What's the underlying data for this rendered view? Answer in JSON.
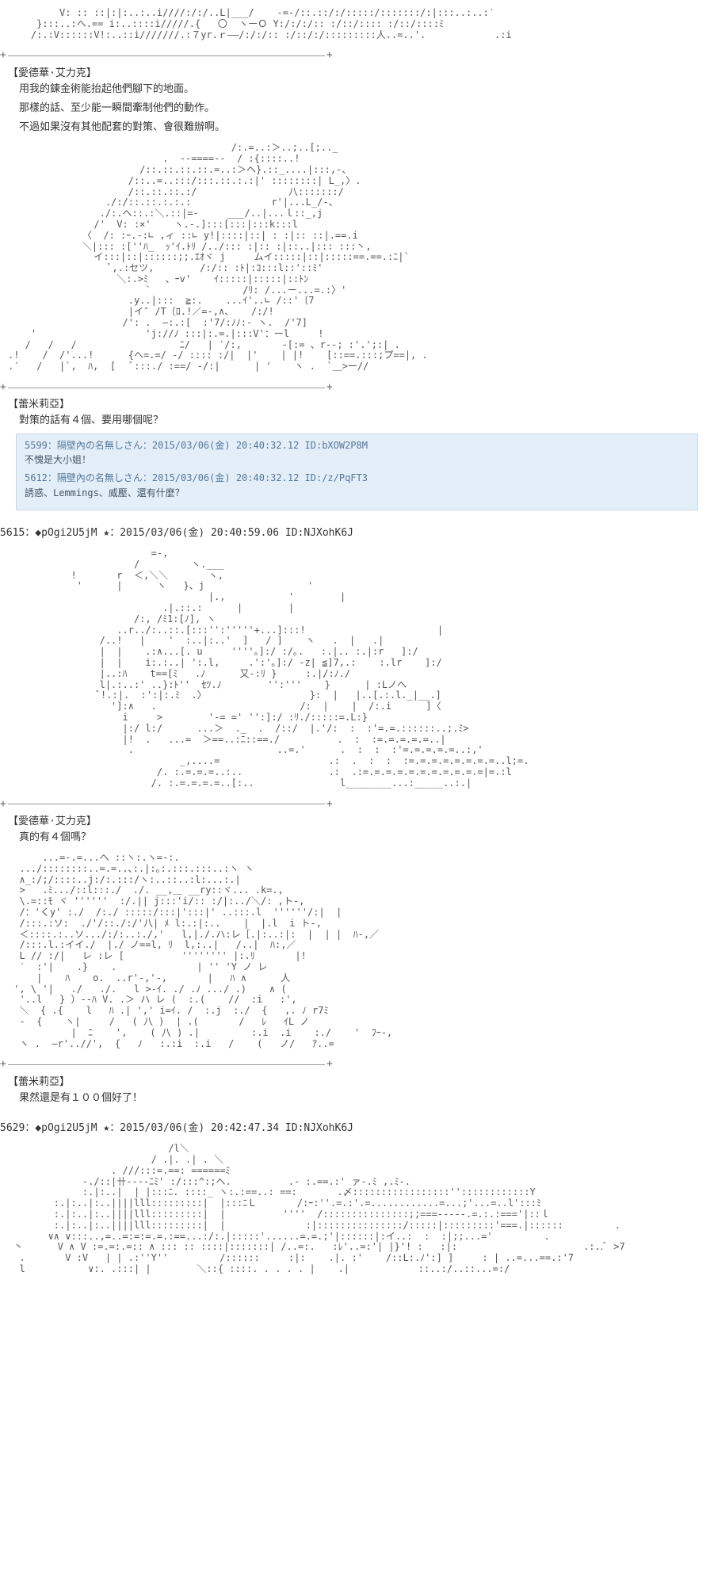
{
  "colors": {
    "bg": "#ffffff",
    "text": "#333333",
    "aa_text": "#555555",
    "quote_bg": "#e4eef8",
    "quote_border": "#c8d8e8",
    "quote_text": "#3a5a7a",
    "quote_header": "#557799",
    "divider": "#999999"
  },
  "blocks": [
    {
      "speaker": "【愛德華·艾力克】",
      "lines": [
        "用我的鍊金術能抬起他們腳下的地面。",
        "那樣的話、至少能一瞬間牽制他們的動作。",
        "不過如果沒有其他配套的對策、會很難辦啊。"
      ]
    },
    {
      "speaker": "【蕾米莉亞】",
      "lines": [
        "對策的話有４個、要用哪個呢？"
      ]
    },
    {
      "speaker": "【愛德華·艾力克】",
      "lines": [
        "真的有４個嗎？"
      ]
    },
    {
      "speaker": "【蕾米莉亞】",
      "lines": [
        "果然還是有１００個好了！"
      ]
    }
  ],
  "quotes": [
    {
      "header": "5599：隔壁內の名無しさん：2015/03/06(金) 20:40:32.12 ID:bXOW2P8M",
      "body": "不愧是大小姐！"
    },
    {
      "header": "5612：隔壁內の名無しさん：2015/03/06(金) 20:40:32.12 ID:/z/PqFT3",
      "body": "誘惑、Lemmings、威壓、還有什麼？"
    }
  ],
  "posts": [
    {
      "header": "5615：◆pOgi2U5jM ★：2015/03/06(金) 20:40:59.06 ID:NJXohK6J"
    },
    {
      "header": "5629：◆pOgi2U5jM ★：2015/03/06(金) 20:42:47.34 ID:NJXohK6J"
    }
  ],
  "aa": {
    "a0": "         V: :: ::|:|:..:..i////:/:/..L|___/    -=-/::.::/:/:::::/:::::::/:|:::..:..:′\n     }:::..:ヘ.== i:..::::i/////.{   〇  ヽーＯ Y:/:/:/:: :/::/:::: :/::/::::ﾐ\n    /:.:V::::::V!:..::i///////.:７yr.ｒ――/:/:/:: :/::/:/:::::::::人..=..'.            .:i",
    "a1": "                                       /:.=..:＞..;..[;.._\n                           .  -‐====‐-  / :{::::..!\n                       /::.::.::.::.=..:＞ヘ}.::_....|:::,-、\n                     /::..=..:::/:::.::.:.:|' ::::::::| L_,〉.\n                     /::.::.::.:/                八:::::::/\n                 ./:/::.::.:.:.:              r'|...L_/-、\n                ./:.ヘ::.:＼.::|=-     ___/..|...ｌ::_,j\n               /'  V: :×'    ヽ.-.]:::[:::|:::k:::l\n             〈  /: :ｰ.-:∟ ,ィ ::∟ y!|::::|::| : :|:: ::|.==.i\n             ＼|::: :[''ﾊ_  ｯ'ｲ.ﾄﾘ /../::: :|:: :|::..|::: :::丶,\n               イ:::|::|::::::;;.ｴｵヾ j     ムイ:::::|::|:::::==.==.:ﾆ|`\n                  ﾞ,.:セツ,        /:/:: :ﾄ|:ｺ:::l::'::ﾐ'\n                   ＼:.>ﾐ   、ｰv'    ｲ:::::|:::::|::ﾄﾝ\n                        `                /ﾘ: /...ー...=.:〉'\n                     .y..|:::  ≧:.    ...ｲ'..∟ /::'〔7\n                     |イ″ /T〔ﾛ.!／=-,∧、   /:/!\n                    /': .  ―:.:[  :'7/:ﾉﾉ:- ヽ.  /'7]\n    '                   'j://ﾉ :::|:.=.|:::V'：ーl     !\n   /   /   /                  ﾆ/   | ′/:,       -[:= 、r--; :'.';:| .\n.!    /  /'...!      {ヘ=.=/ -/ :::: :/|  |'    | |!    [::==.:::;プ==|, .\n.′   /   |`,  ﾊ,  [   ﾞ:::./ :==/ -/:|      | '    ヽ .  `＿>ー//",
    "a2": "                         =-,\n                      /         ヽ.___\n           !       r  ＜,＼＼       ヽ,\n            '      |      ヽ   }、j                  '\n                                   |.,           '        |\n                           .|.::.:      |        |\n                      /:, /ﾐ1:[ﾉ], ヽ\n                   ..r../:..::.[:::'':'''''+...]:::!                       |\n                /..!   |    '  :..|:..'  ]   / ]    ヽ   .  |   .|\n                |  |    .:∧...[. u     ''''｡]:/ :/｡.   :.|.. :.|:r   ]:/\n                |  |    i:.:..| ':.l,     .':'｡]:/ -z| ≦]7,.:    :.lr    ]:/\n                |..:ﾊ    t==[ﾐ   .ﾉ      又-:ﾘ }     :.|/:ﾉ./\n                l|.:..:' ..}:ﾄ''  ｾﾂ.ﾉ        '':'''    }      | :Lノヘ\n                ﾞ!.:|.  :':|:.ﾐ  .〉                  }:  |   |..[.:.l._|__.]\n                  ']:∧   .                         /:  |    |  /:.i      ]〈\n                    i     >        '-= =' '':]:/ :ﾘ./:::::=.L:}\n                    |:/ l:/      ...＞  ._  .  /::/  |.'/:  :  :'=.=.::::::..;.ﾐ>\n                    |!  .   ...=  ＞==..:ﾆ::==./          .  :  :=.=.=.=.=..|\n                     .                         ..=.'      .  :  :  :'=.=.=.=.=..:,'\n                              _,....=                   .:  .  :  :  :=.=.=.=.=.=.=.=..l;=.\n                          /. :.=.=.=..:..               .:  .:=.=.=.=.=.=.=.=.=.=.=|=.:l\n                         /. :.=.=.=.=..[:..               l________...:_____..:.|",
    "a3": "      ...=-.=...ヘ ::ヽ:.ヽ=-:.\n  .../::::::::..=.=..､:.|:｡:.:::.:::..:ヽ ヽ\n  ∧_:/;/::::..j:/:.:::/ヽ:..::..:l:...:.|\n  >   .ﾐ.../::l:::./  ./. __,＿ __ry::ヾ... .k=.,\n  \\.=::ﾓ ヾ ''''''  :/.|| j:::'i/:: :/|:../＼/: ,ト‐,\n  /：'くy' :./  /:./ :::::/:::|':::|' ..:::.l  ''''''/:|  |\n  /:::.:ソ:  ./'/::./:/'八| ﾒ l:.:|:..    |  |.l  i ト‐,\n  ＜::::.:..ソ.../:/:..:./,'   l,|./.ハ:レ［.|:..:|:  |  | |  ﾊ-,／\n  /:::.l.:イイ./  |./ ノ==l, ﾘ  l,:..|   /..|  ﾊ:,／\n  L // :/|   レ :レ [          '''''''' |:.ﾘ       |!\n  ′  :'|    .}    .              | '' 'Y ノ レ\n     |    ﾊ    o.  ..r'-,'‐,       |   ﾊ ∧      人\n ', \\ '|   ./   ./.   l >-ｲ. ./ .ﾉ .../ .)    ∧ (\n  '..l   } ）‐-ﾊ V. .＞ ハ レ (  :.(    //  :i   :',\n  ＼  { .{    l   ﾊ .| ',' i=ｲ. /  :.j  :./  {   ,. ﾉ r7ﾐ\n  ‐  {    ヽ|     /   ( 八 )  | .(       /   ﾚ   ｲL ノ\n           |  ﾆ    ',    ( 八 ) .|         :.i  .i    :./    '  ﾌｰ-,\n  ヽ .  ―r'..//',  {   ﾉ   :.:i  :.i   /    (   ノ/   ｱ..=",
    "a4": "                            /l＼\n                         / .|. .| . ＼\n                  . ///:::=.==: ======ﾐ\n             ‐./::|卄‐‐‐‐ﾆﾐ' :/:::^:;ヘ.          .- :.==.:' ァ-.ﾐ ,.ﾐ-.\n             :.|:..|  | |:::ﾆ. ::::_ ヽ:.:==..: ==:       .〆:::::::::::::::::''::::::::::::Y\n        :.|:..|:..||||lll:::::::::|  |:::ﾆＬ       /:ｰ:''.=.:'.=............=...;'...=..l':::ﾐ\n        :.|:..|:..||||lll:::::::::|  |          ''''  /:::::::::::::::;;===-----.=.:.:==='|::ｌ\n        :.|:..|:..||||lll:::::::::|  |              :|:::::::::::::::/:::::|:::::::::'===.|::::::         .\n       ∨∧ ∨:::..,=..=:=:=.=.:==...:/:.|:::::'......=.=.;'|::::::|:イ..:  :  :|;;...='         .\n 丶      V ∧ V :=.=:.=:: ∧ ::: :: ::::|:::::::| /..=:.   :ﾚ'..=:'| |}'! :   :|:                      .:..ﾞ >7\n  .       V :V   | | .:''Y''         /::::::     :|:    .|. :'    /::L:.ﾉ':] ]     : | ..=...==.:'7\n  l           ∨:. .:::| |        ＼::{ ::::. . . . . |    .|            ::..:/..::...=:/"
  }
}
